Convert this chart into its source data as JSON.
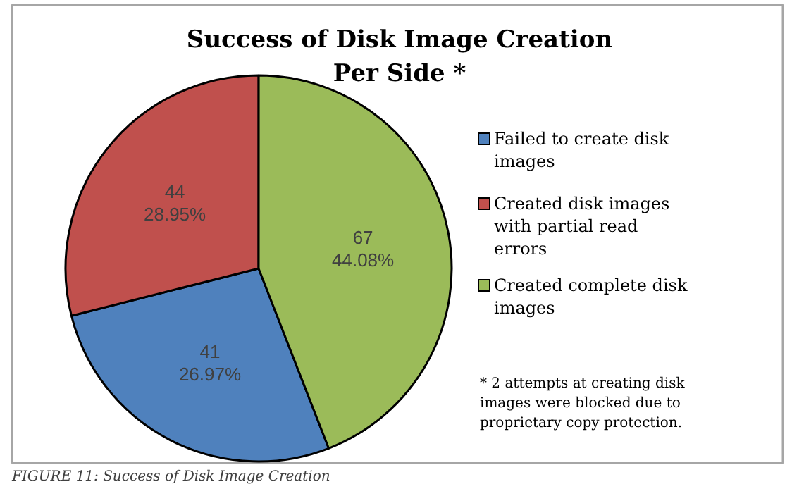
{
  "chart_data": {
    "type": "pie",
    "title": "Success of Disk Image Creation\nPer Side *",
    "categories": [
      "Failed to create disk images",
      "Created disk images with partial read errors",
      "Created complete disk images"
    ],
    "values": [
      41,
      44,
      67
    ],
    "colors": [
      "#4f81bd",
      "#c0504d",
      "#9bbb59"
    ],
    "value_labels": [
      "41\n26.97%",
      "44\n28.95%",
      "67\n44.08%"
    ],
    "legend": "right",
    "annotations": [
      "* 2 attempts at creating disk images were blocked due to proprietary copy protection.",
      "FIGURE 11: Success of Disk Image Creation"
    ]
  }
}
